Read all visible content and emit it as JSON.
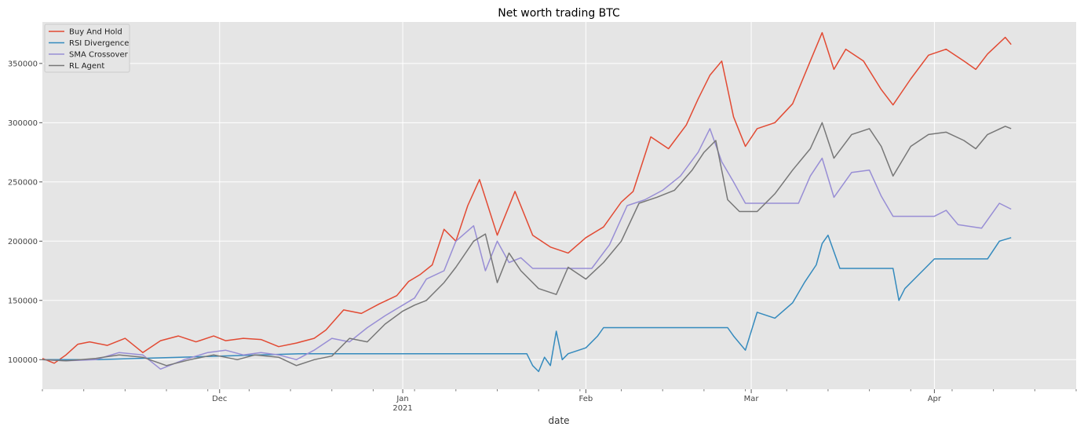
{
  "chart_data": {
    "type": "line",
    "title": "Net worth trading BTC",
    "xlabel": "date",
    "ylabel": "",
    "ylim": [
      75000,
      385000
    ],
    "x_range": [
      "2020-11-01",
      "2021-04-25"
    ],
    "grid": true,
    "legend_position": "top-left",
    "y_ticks": [
      {
        "value": 100000,
        "label": "100000"
      },
      {
        "value": 150000,
        "label": "150000"
      },
      {
        "value": 200000,
        "label": "200000"
      },
      {
        "value": 250000,
        "label": "250000"
      },
      {
        "value": 300000,
        "label": "300000"
      },
      {
        "value": 350000,
        "label": "350000"
      }
    ],
    "x_ticks": [
      {
        "date": "2020-12-01",
        "label": "Dec",
        "sublabel": ""
      },
      {
        "date": "2021-01-01",
        "label": "Jan",
        "sublabel": "2021"
      },
      {
        "date": "2021-02-01",
        "label": "Feb",
        "sublabel": ""
      },
      {
        "date": "2021-03-01",
        "label": "Mar",
        "sublabel": ""
      },
      {
        "date": "2021-04-01",
        "label": "Apr",
        "sublabel": ""
      }
    ],
    "series": [
      {
        "name": "Buy And Hold",
        "color": "#e24a33",
        "x": [
          "2020-11-01",
          "2020-11-03",
          "2020-11-05",
          "2020-11-07",
          "2020-11-09",
          "2020-11-12",
          "2020-11-15",
          "2020-11-18",
          "2020-11-21",
          "2020-11-24",
          "2020-11-27",
          "2020-11-30",
          "2020-12-02",
          "2020-12-05",
          "2020-12-08",
          "2020-12-11",
          "2020-12-14",
          "2020-12-17",
          "2020-12-19",
          "2020-12-22",
          "2020-12-25",
          "2020-12-28",
          "2020-12-31",
          "2021-01-02",
          "2021-01-04",
          "2021-01-06",
          "2021-01-08",
          "2021-01-10",
          "2021-01-12",
          "2021-01-14",
          "2021-01-17",
          "2021-01-20",
          "2021-01-23",
          "2021-01-26",
          "2021-01-29",
          "2021-02-01",
          "2021-02-04",
          "2021-02-07",
          "2021-02-09",
          "2021-02-12",
          "2021-02-15",
          "2021-02-18",
          "2021-02-20",
          "2021-02-22",
          "2021-02-24",
          "2021-02-26",
          "2021-02-28",
          "2021-03-02",
          "2021-03-05",
          "2021-03-08",
          "2021-03-11",
          "2021-03-13",
          "2021-03-15",
          "2021-03-17",
          "2021-03-20",
          "2021-03-23",
          "2021-03-25",
          "2021-03-28",
          "2021-03-31",
          "2021-04-03",
          "2021-04-06",
          "2021-04-08",
          "2021-04-10",
          "2021-04-13",
          "2021-04-14"
        ],
        "y": [
          101000,
          97000,
          104000,
          113000,
          115000,
          112000,
          118000,
          106000,
          116000,
          120000,
          115000,
          120000,
          116000,
          118000,
          117000,
          111000,
          114000,
          118000,
          125000,
          142000,
          139000,
          147000,
          154000,
          166000,
          172000,
          180000,
          210000,
          200000,
          230000,
          252000,
          205000,
          242000,
          205000,
          195000,
          190000,
          203000,
          212000,
          233000,
          242000,
          288000,
          278000,
          298000,
          320000,
          340000,
          352000,
          305000,
          280000,
          295000,
          300000,
          316000,
          352000,
          376000,
          345000,
          362000,
          352000,
          328000,
          315000,
          337000,
          357000,
          362000,
          352000,
          345000,
          358000,
          372000,
          366000
        ]
      },
      {
        "name": "RSI Divergence",
        "color": "#348abd",
        "x": [
          "2020-11-01",
          "2020-11-05",
          "2020-11-10",
          "2020-12-15",
          "2021-01-13",
          "2021-01-22",
          "2021-01-23",
          "2021-01-24",
          "2021-01-25",
          "2021-01-26",
          "2021-01-27",
          "2021-01-28",
          "2021-01-29",
          "2021-02-01",
          "2021-02-03",
          "2021-02-04",
          "2021-02-25",
          "2021-02-26",
          "2021-02-28",
          "2021-03-02",
          "2021-03-05",
          "2021-03-08",
          "2021-03-10",
          "2021-03-12",
          "2021-03-13",
          "2021-03-14",
          "2021-03-16",
          "2021-03-25",
          "2021-03-26",
          "2021-03-27",
          "2021-03-29",
          "2021-03-31",
          "2021-04-01",
          "2021-04-08",
          "2021-04-10",
          "2021-04-12",
          "2021-04-14"
        ],
        "y": [
          100000,
          100000,
          100000,
          105000,
          105000,
          105000,
          95000,
          90000,
          102000,
          95000,
          124000,
          100000,
          105000,
          110000,
          120000,
          127000,
          127000,
          120000,
          108000,
          140000,
          135000,
          148000,
          165000,
          180000,
          198000,
          205000,
          177000,
          177000,
          150000,
          160000,
          170000,
          180000,
          185000,
          185000,
          185000,
          200000,
          203000
        ]
      },
      {
        "name": "SMA Crossover",
        "color": "#988ed5",
        "x": [
          "2020-11-01",
          "2020-11-05",
          "2020-11-10",
          "2020-11-14",
          "2020-11-18",
          "2020-11-21",
          "2020-11-25",
          "2020-11-29",
          "2020-12-02",
          "2020-12-05",
          "2020-12-08",
          "2020-12-11",
          "2020-12-14",
          "2020-12-17",
          "2020-12-20",
          "2020-12-23",
          "2020-12-26",
          "2020-12-29",
          "2021-01-01",
          "2021-01-03",
          "2021-01-05",
          "2021-01-08",
          "2021-01-10",
          "2021-01-13",
          "2021-01-15",
          "2021-01-17",
          "2021-01-19",
          "2021-01-21",
          "2021-01-23",
          "2021-01-30",
          "2021-02-02",
          "2021-02-05",
          "2021-02-08",
          "2021-02-11",
          "2021-02-14",
          "2021-02-17",
          "2021-02-20",
          "2021-02-22",
          "2021-02-24",
          "2021-02-26",
          "2021-02-28",
          "2021-03-09",
          "2021-03-11",
          "2021-03-13",
          "2021-03-15",
          "2021-03-18",
          "2021-03-21",
          "2021-03-23",
          "2021-03-25",
          "2021-03-29",
          "2021-04-01",
          "2021-04-03",
          "2021-04-05",
          "2021-04-09",
          "2021-04-12",
          "2021-04-14"
        ],
        "y": [
          100000,
          99000,
          100000,
          106000,
          104000,
          92000,
          100000,
          106000,
          108000,
          104000,
          106000,
          104000,
          100000,
          108000,
          118000,
          115000,
          127000,
          137000,
          146000,
          152000,
          168000,
          175000,
          200000,
          213000,
          175000,
          200000,
          182000,
          186000,
          177000,
          177000,
          177000,
          197000,
          230000,
          235000,
          243000,
          255000,
          275000,
          295000,
          267000,
          250000,
          232000,
          232000,
          255000,
          270000,
          237000,
          258000,
          260000,
          238000,
          221000,
          221000,
          221000,
          226000,
          214000,
          211000,
          232000,
          227000
        ]
      },
      {
        "name": "RL Agent",
        "color": "#777777",
        "x": [
          "2020-11-01",
          "2020-11-05",
          "2020-11-10",
          "2020-11-14",
          "2020-11-18",
          "2020-11-22",
          "2020-11-26",
          "2020-11-30",
          "2020-12-04",
          "2020-12-07",
          "2020-12-11",
          "2020-12-14",
          "2020-12-17",
          "2020-12-20",
          "2020-12-23",
          "2020-12-26",
          "2020-12-29",
          "2021-01-01",
          "2021-01-03",
          "2021-01-05",
          "2021-01-08",
          "2021-01-10",
          "2021-01-13",
          "2021-01-15",
          "2021-01-17",
          "2021-01-19",
          "2021-01-21",
          "2021-01-24",
          "2021-01-27",
          "2021-01-29",
          "2021-02-01",
          "2021-02-04",
          "2021-02-07",
          "2021-02-10",
          "2021-02-13",
          "2021-02-16",
          "2021-02-19",
          "2021-02-21",
          "2021-02-23",
          "2021-02-25",
          "2021-02-27",
          "2021-03-02",
          "2021-03-05",
          "2021-03-08",
          "2021-03-11",
          "2021-03-13",
          "2021-03-15",
          "2021-03-18",
          "2021-03-21",
          "2021-03-23",
          "2021-03-25",
          "2021-03-28",
          "2021-03-31",
          "2021-04-03",
          "2021-04-06",
          "2021-04-08",
          "2021-04-10",
          "2021-04-13",
          "2021-04-14"
        ],
        "y": [
          100000,
          99000,
          101000,
          104000,
          102000,
          95000,
          100000,
          104000,
          100000,
          104000,
          102000,
          95000,
          100000,
          103000,
          118000,
          115000,
          130000,
          141000,
          146000,
          150000,
          165000,
          178000,
          200000,
          206000,
          165000,
          190000,
          175000,
          160000,
          155000,
          178000,
          168000,
          182000,
          200000,
          232000,
          237000,
          243000,
          260000,
          275000,
          285000,
          235000,
          225000,
          225000,
          240000,
          260000,
          278000,
          300000,
          270000,
          290000,
          295000,
          280000,
          255000,
          280000,
          290000,
          292000,
          285000,
          278000,
          290000,
          297000,
          295000
        ]
      }
    ]
  }
}
